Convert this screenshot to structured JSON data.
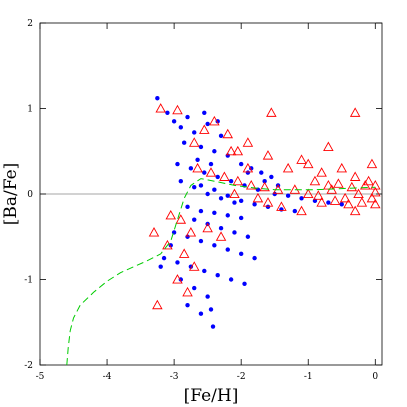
{
  "chart_data": {
    "type": "scatter",
    "xlabel": "[Fe/H]",
    "ylabel": "[Ba/Fe]",
    "xlim": [
      -5,
      0.1
    ],
    "ylim": [
      -2,
      2
    ],
    "x_ticks": [
      -5,
      -4,
      -3,
      -2,
      -1,
      0
    ],
    "y_ticks": [
      -2,
      -1,
      0,
      1,
      2
    ],
    "reference_line_y": 0,
    "colors": {
      "model_points": "#0000ff",
      "observed": "#ff0000",
      "trend": "#00cc00",
      "reference": "#888888"
    },
    "series": [
      {
        "marker": "dot",
        "color": "#0000ff",
        "points": [
          [
            -3.25,
            1.12
          ],
          [
            -3.1,
            0.95
          ],
          [
            -3.0,
            0.85
          ],
          [
            -2.9,
            0.78
          ],
          [
            -2.8,
            0.9
          ],
          [
            -2.7,
            0.72
          ],
          [
            -2.5,
            0.82
          ],
          [
            -2.3,
            0.68
          ],
          [
            -2.85,
            0.6
          ],
          [
            -2.6,
            0.55
          ],
          [
            -2.4,
            0.5
          ],
          [
            -2.2,
            0.45
          ],
          [
            -2.0,
            0.35
          ],
          [
            -1.85,
            0.3
          ],
          [
            -1.7,
            0.25
          ],
          [
            -1.55,
            0.2
          ],
          [
            -2.95,
            0.35
          ],
          [
            -2.75,
            0.3
          ],
          [
            -2.55,
            0.25
          ],
          [
            -2.35,
            0.2
          ],
          [
            -2.15,
            0.15
          ],
          [
            -1.95,
            0.1
          ],
          [
            -1.75,
            0.05
          ],
          [
            -1.5,
            0.0
          ],
          [
            -1.3,
            -0.02
          ],
          [
            -1.1,
            -0.05
          ],
          [
            -0.9,
            -0.08
          ],
          [
            -0.7,
            -0.1
          ],
          [
            -0.5,
            -0.12
          ],
          [
            -2.6,
            0.1
          ],
          [
            -2.4,
            0.05
          ],
          [
            -2.2,
            -0.02
          ],
          [
            -2.0,
            -0.08
          ],
          [
            -1.8,
            -0.12
          ],
          [
            -1.6,
            -0.15
          ],
          [
            -1.4,
            -0.18
          ],
          [
            -1.2,
            -0.2
          ],
          [
            -2.9,
            0.15
          ],
          [
            -2.7,
            0.08
          ],
          [
            -2.5,
            0.0
          ],
          [
            -2.3,
            -0.05
          ],
          [
            -2.1,
            -0.1
          ],
          [
            -2.8,
            -0.15
          ],
          [
            -2.6,
            -0.2
          ],
          [
            -2.4,
            -0.22
          ],
          [
            -2.2,
            -0.25
          ],
          [
            -2.0,
            -0.28
          ],
          [
            -3.0,
            -0.45
          ],
          [
            -2.8,
            -0.5
          ],
          [
            -2.6,
            -0.55
          ],
          [
            -2.4,
            -0.6
          ],
          [
            -2.2,
            -0.65
          ],
          [
            -2.0,
            -0.7
          ],
          [
            -1.8,
            -0.75
          ],
          [
            -3.15,
            -0.75
          ],
          [
            -2.95,
            -0.8
          ],
          [
            -2.75,
            -0.85
          ],
          [
            -2.55,
            -0.9
          ],
          [
            -2.35,
            -0.95
          ],
          [
            -2.15,
            -1.0
          ],
          [
            -1.95,
            -1.05
          ],
          [
            -2.9,
            -1.0
          ],
          [
            -2.7,
            -1.1
          ],
          [
            -2.5,
            -1.2
          ],
          [
            -2.45,
            -1.35
          ],
          [
            -2.6,
            -1.4
          ],
          [
            -2.8,
            -1.3
          ],
          [
            -2.42,
            -1.55
          ],
          [
            -2.3,
            -0.4
          ],
          [
            -2.1,
            -0.45
          ],
          [
            -1.9,
            -0.5
          ],
          [
            -2.5,
            -0.35
          ],
          [
            -2.7,
            -0.3
          ],
          [
            -3.05,
            -0.6
          ],
          [
            -3.2,
            -0.85
          ],
          [
            -2.35,
            0.85
          ],
          [
            -2.55,
            0.95
          ],
          [
            -2.65,
            0.4
          ],
          [
            -2.45,
            0.35
          ],
          [
            -1.65,
            0.15
          ],
          [
            -1.45,
            0.1
          ],
          [
            -1.9,
            0.25
          ]
        ]
      },
      {
        "marker": "open-triangle",
        "color": "#ff0000",
        "points": [
          [
            -3.2,
            1.0
          ],
          [
            -2.95,
            0.98
          ],
          [
            -2.7,
            0.6
          ],
          [
            -2.55,
            0.75
          ],
          [
            -2.4,
            0.85
          ],
          [
            -2.2,
            0.7
          ],
          [
            -2.05,
            0.5
          ],
          [
            -1.9,
            0.6
          ],
          [
            -1.6,
            0.45
          ],
          [
            -1.3,
            0.3
          ],
          [
            -1.0,
            0.35
          ],
          [
            -0.8,
            0.25
          ],
          [
            -0.5,
            0.3
          ],
          [
            -0.3,
            0.2
          ],
          [
            -0.1,
            0.15
          ],
          [
            0.0,
            0.1
          ],
          [
            -2.65,
            0.3
          ],
          [
            -2.45,
            0.25
          ],
          [
            -2.25,
            0.2
          ],
          [
            -2.05,
            0.15
          ],
          [
            -1.85,
            0.1
          ],
          [
            -1.65,
            0.08
          ],
          [
            -1.45,
            0.05
          ],
          [
            -1.2,
            0.05
          ],
          [
            -1.0,
            0.0
          ],
          [
            -0.85,
            -0.02
          ],
          [
            -0.65,
            0.05
          ],
          [
            -0.45,
            -0.05
          ],
          [
            -0.25,
            0.0
          ],
          [
            -0.05,
            -0.05
          ],
          [
            -0.9,
            0.15
          ],
          [
            -0.7,
            0.1
          ],
          [
            -0.55,
            0.12
          ],
          [
            -0.35,
            0.08
          ],
          [
            -0.15,
            0.1
          ],
          [
            0.0,
            0.02
          ],
          [
            -0.8,
            -0.1
          ],
          [
            -0.6,
            -0.08
          ],
          [
            -0.4,
            -0.12
          ],
          [
            -0.2,
            -0.1
          ],
          [
            0.0,
            -0.12
          ],
          [
            -0.3,
            -0.2
          ],
          [
            -2.9,
            -0.3
          ],
          [
            -2.75,
            -0.45
          ],
          [
            -3.05,
            -0.25
          ],
          [
            -3.3,
            -0.45
          ],
          [
            -3.1,
            -0.6
          ],
          [
            -2.85,
            -0.7
          ],
          [
            -2.7,
            -0.85
          ],
          [
            -2.95,
            -1.0
          ],
          [
            -2.8,
            -1.15
          ],
          [
            -3.25,
            -1.3
          ],
          [
            -2.5,
            -0.4
          ],
          [
            -2.3,
            -0.5
          ],
          [
            -1.6,
            -0.1
          ],
          [
            -1.4,
            -0.15
          ],
          [
            -1.1,
            -0.2
          ],
          [
            -0.3,
            0.95
          ],
          [
            -1.55,
            0.95
          ],
          [
            -2.15,
            0.5
          ],
          [
            -0.05,
            0.35
          ],
          [
            -0.7,
            0.55
          ],
          [
            -1.1,
            0.4
          ],
          [
            -1.9,
            0.3
          ],
          [
            -2.1,
            0.0
          ],
          [
            -1.75,
            -0.05
          ]
        ]
      },
      {
        "marker": "dashed-line",
        "color": "#00cc00",
        "points": [
          [
            -4.6,
            -2.0
          ],
          [
            -4.58,
            -1.8
          ],
          [
            -4.55,
            -1.6
          ],
          [
            -4.5,
            -1.45
          ],
          [
            -4.4,
            -1.3
          ],
          [
            -4.2,
            -1.15
          ],
          [
            -4.0,
            -1.02
          ],
          [
            -3.8,
            -0.92
          ],
          [
            -3.6,
            -0.85
          ],
          [
            -3.4,
            -0.78
          ],
          [
            -3.2,
            -0.7
          ],
          [
            -3.05,
            -0.55
          ],
          [
            -2.95,
            -0.3
          ],
          [
            -2.85,
            -0.05
          ],
          [
            -2.75,
            0.1
          ],
          [
            -2.6,
            0.18
          ],
          [
            -2.4,
            0.15
          ],
          [
            -2.1,
            0.1
          ],
          [
            -1.8,
            0.07
          ],
          [
            -1.5,
            0.05
          ],
          [
            -1.2,
            0.05
          ],
          [
            -0.9,
            0.05
          ],
          [
            -0.6,
            0.06
          ],
          [
            -0.3,
            0.07
          ],
          [
            0.0,
            0.08
          ]
        ]
      }
    ]
  }
}
